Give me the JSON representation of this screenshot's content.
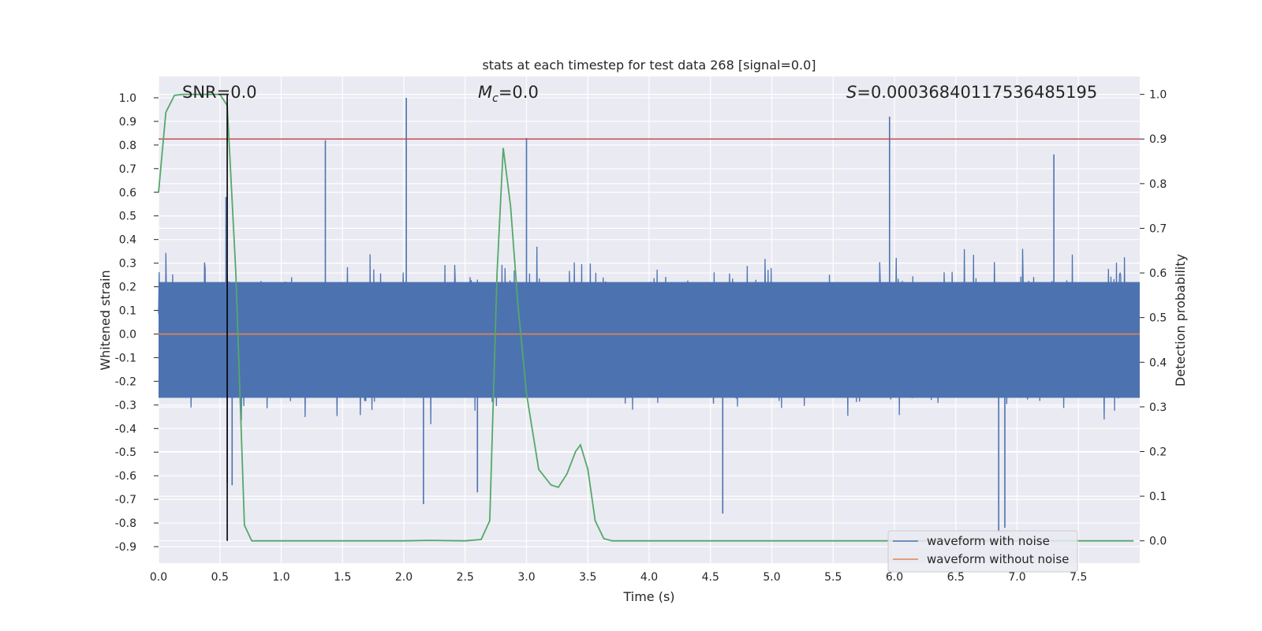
{
  "chart_data": {
    "type": "line",
    "title": "stats at each timestep for test data 268 [signal=0.0]",
    "xlabel": "Time (s)",
    "ylabel_left": "Whitened strain",
    "ylabel_right": "Detection probability",
    "xlim": [
      0.0,
      8.0
    ],
    "ylim_left": [
      -0.97,
      1.09
    ],
    "ylim_right": [
      -0.05,
      1.04
    ],
    "x_ticks": [
      "0.0",
      "0.5",
      "1.0",
      "1.5",
      "2.0",
      "2.5",
      "3.0",
      "3.5",
      "4.0",
      "4.5",
      "5.0",
      "5.5",
      "6.0",
      "6.5",
      "7.0",
      "7.5"
    ],
    "y_left_ticks": [
      "-0.9",
      "-0.8",
      "-0.7",
      "-0.6",
      "-0.5",
      "-0.4",
      "-0.3",
      "-0.2",
      "-0.1",
      "0.0",
      "0.1",
      "0.2",
      "0.3",
      "0.4",
      "0.5",
      "0.6",
      "0.7",
      "0.8",
      "0.9",
      "1.0"
    ],
    "y_right_ticks": [
      "0.0",
      "0.1",
      "0.2",
      "0.3",
      "0.4",
      "0.5",
      "0.6",
      "0.7",
      "0.8",
      "0.9",
      "1.0"
    ],
    "annotations": {
      "snr": "SNR=0.0",
      "mc_symbol": "M",
      "mc_sub": "c",
      "mc_value": "=0.0",
      "s_symbol": "S",
      "s_value": "=0.00036840117536485195"
    },
    "threshold_line": {
      "axis": "right",
      "value": 0.9,
      "color": "#c44e52"
    },
    "marker_line": {
      "x": 0.56,
      "color": "#000000"
    },
    "series": [
      {
        "name": "waveform with noise",
        "color": "#4c72b0",
        "axis": "left",
        "kind": "noise",
        "n": 1600,
        "spread": 0.19,
        "peaks": [
          {
            "x": 0.55,
            "y": 0.58
          },
          {
            "x": 0.56,
            "y": -0.63
          },
          {
            "x": 0.6,
            "y": -0.64
          },
          {
            "x": 1.36,
            "y": 0.82
          },
          {
            "x": 2.02,
            "y": 1.0
          },
          {
            "x": 2.16,
            "y": -0.72
          },
          {
            "x": 2.6,
            "y": -0.67
          },
          {
            "x": 3.0,
            "y": 0.83
          },
          {
            "x": 5.96,
            "y": 0.92
          },
          {
            "x": 4.6,
            "y": -0.76
          },
          {
            "x": 6.85,
            "y": -0.84
          },
          {
            "x": 6.9,
            "y": -0.82
          },
          {
            "x": 7.3,
            "y": 0.76
          }
        ]
      },
      {
        "name": "waveform without noise",
        "color": "#dd8452",
        "axis": "left",
        "x": [
          0.0,
          8.0
        ],
        "y": [
          0.0,
          0.0
        ]
      },
      {
        "name": "detection probability",
        "color": "#55a868",
        "axis": "right",
        "x": [
          0.0,
          0.06,
          0.13,
          0.2,
          0.3,
          0.4,
          0.5,
          0.56,
          0.63,
          0.7,
          0.76,
          0.82,
          1.0,
          1.5,
          2.0,
          2.2,
          2.5,
          2.63,
          2.7,
          2.76,
          2.81,
          2.87,
          2.93,
          3.0,
          3.1,
          3.2,
          3.26,
          3.33,
          3.4,
          3.44,
          3.5,
          3.56,
          3.63,
          3.7,
          4.0,
          5.0,
          6.0,
          7.0,
          7.95
        ],
        "y": [
          0.78,
          0.96,
          0.998,
          1.0,
          1.0,
          1.0,
          1.0,
          0.975,
          0.6,
          0.035,
          0.0,
          0.0,
          0.0,
          0.0,
          0.0,
          0.001,
          0.0,
          0.003,
          0.045,
          0.6,
          0.88,
          0.75,
          0.53,
          0.33,
          0.16,
          0.125,
          0.12,
          0.15,
          0.2,
          0.215,
          0.16,
          0.045,
          0.005,
          0.0,
          0.0,
          0.0,
          0.0,
          0.0,
          0.0
        ]
      }
    ],
    "legend": [
      "waveform with noise",
      "waveform without noise"
    ]
  }
}
